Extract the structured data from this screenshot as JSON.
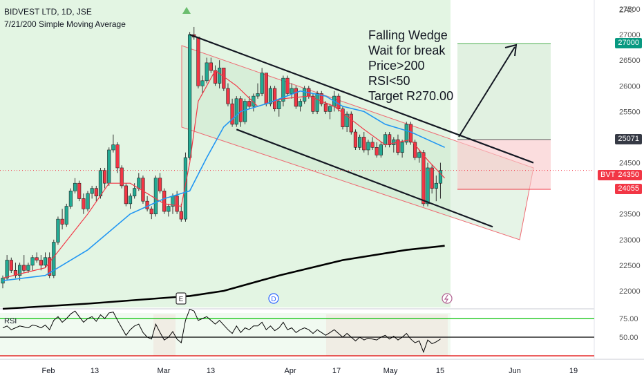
{
  "header": {
    "title": "BIDVEST LTD, 1D, JSE",
    "indicator": "7/21/200 Simple Moving Average"
  },
  "annotation": {
    "lines": [
      "Falling Wedge",
      "Wait for break",
      "Price>200",
      "RSI<50",
      "Target R270.00"
    ]
  },
  "price_tags": {
    "currency": "ZAC",
    "symbol": "BVT",
    "current": "24350",
    "target": "27000",
    "entry": "25071",
    "stop": "24055"
  },
  "markers": {
    "earnings": "E",
    "dividend": "D"
  },
  "rsi_label": "RSI",
  "colors": {
    "up": "#22ab94",
    "down": "#f23645",
    "ma_fast": "#f23645",
    "ma_mid": "#2196f3",
    "ma_slow": "#000000",
    "bg_bull": "#e3f5e3",
    "rsi_line": "#000000",
    "rsi_upper": "#00c000",
    "rsi_lower": "#e00000"
  },
  "chart_data": [
    {
      "type": "candlestick",
      "yaxis": {
        "ticks": [
          22000,
          22500,
          23000,
          23500,
          24000,
          24500,
          25000,
          25500,
          26000,
          26500,
          27000,
          27500
        ],
        "tick_labels": [
          "22000",
          "22500",
          "23000",
          "23500",
          "24000",
          "24500",
          "25000",
          "25500",
          "26000",
          "26500",
          "27000",
          "27500"
        ],
        "range": [
          21800,
          27900
        ]
      },
      "xaxis": {
        "tick_labels": [
          "Feb",
          "13",
          "Mar",
          "13",
          "Apr",
          "17",
          "May",
          "15",
          "Jun",
          "19"
        ]
      },
      "candles": [
        [
          22150,
          22300,
          22050,
          22250
        ],
        [
          22250,
          22700,
          22200,
          22600
        ],
        [
          22600,
          22650,
          22350,
          22400
        ],
        [
          22400,
          22550,
          22250,
          22300
        ],
        [
          22300,
          22550,
          22200,
          22500
        ],
        [
          22500,
          22700,
          22350,
          22400
        ],
        [
          22400,
          22550,
          22350,
          22500
        ],
        [
          22500,
          22700,
          22400,
          22650
        ],
        [
          22650,
          22750,
          22550,
          22600
        ],
        [
          22600,
          22700,
          22400,
          22500
        ],
        [
          22500,
          22750,
          22450,
          22650
        ],
        [
          22650,
          22750,
          22250,
          22300
        ],
        [
          22300,
          23000,
          22250,
          22950
        ],
        [
          22950,
          23450,
          22900,
          23400
        ],
        [
          23400,
          23600,
          23200,
          23300
        ],
        [
          23300,
          23700,
          23250,
          23650
        ],
        [
          23650,
          24000,
          23600,
          23950
        ],
        [
          23950,
          24200,
          23900,
          24100
        ],
        [
          24100,
          24150,
          23750,
          23800
        ],
        [
          23800,
          23900,
          23500,
          23600
        ],
        [
          23600,
          23950,
          23550,
          23900
        ],
        [
          23900,
          24050,
          23800,
          24000
        ],
        [
          24000,
          24050,
          23750,
          23850
        ],
        [
          23850,
          24400,
          23800,
          24350
        ],
        [
          24350,
          24400,
          24000,
          24100
        ],
        [
          24100,
          24800,
          24050,
          24750
        ],
        [
          24750,
          25050,
          24700,
          24850
        ],
        [
          24850,
          24900,
          24300,
          24400
        ],
        [
          24400,
          24450,
          24000,
          24050
        ],
        [
          24050,
          24100,
          23650,
          23700
        ],
        [
          23700,
          23900,
          23600,
          23850
        ],
        [
          23850,
          24100,
          23800,
          24000
        ],
        [
          24000,
          24300,
          23950,
          24200
        ],
        [
          24200,
          24250,
          23700,
          23750
        ],
        [
          23750,
          23850,
          23550,
          23600
        ],
        [
          23600,
          23650,
          23400,
          23500
        ],
        [
          23500,
          24250,
          23450,
          24200
        ],
        [
          24200,
          24300,
          23900,
          23950
        ],
        [
          23950,
          24000,
          23500,
          23550
        ],
        [
          23550,
          23700,
          23450,
          23650
        ],
        [
          23650,
          23900,
          23500,
          23850
        ],
        [
          23850,
          23950,
          23500,
          23550
        ],
        [
          23550,
          23700,
          23350,
          23400
        ],
        [
          23400,
          24700,
          23350,
          24600
        ],
        [
          24600,
          27050,
          24550,
          27000
        ],
        [
          27000,
          27150,
          26900,
          26950
        ],
        [
          26950,
          26900,
          25950,
          26000
        ],
        [
          26000,
          26200,
          25850,
          26100
        ],
        [
          26100,
          26550,
          26050,
          26450
        ],
        [
          26450,
          26550,
          26250,
          26300
        ],
        [
          26300,
          26400,
          26000,
          26050
        ],
        [
          26050,
          26500,
          25950,
          26350
        ],
        [
          26350,
          26350,
          25900,
          25950
        ],
        [
          25950,
          26050,
          25600,
          25650
        ],
        [
          25650,
          25750,
          25200,
          25250
        ],
        [
          25250,
          25800,
          25200,
          25750
        ],
        [
          25750,
          25800,
          25200,
          25300
        ],
        [
          25300,
          25750,
          25250,
          25700
        ],
        [
          25700,
          25800,
          25550,
          25600
        ],
        [
          25600,
          25850,
          25500,
          25800
        ],
        [
          25800,
          26050,
          25750,
          25850
        ],
        [
          25850,
          26350,
          25800,
          26250
        ],
        [
          26250,
          26250,
          25600,
          25650
        ],
        [
          25650,
          26000,
          25600,
          25950
        ],
        [
          25950,
          26000,
          25500,
          25550
        ],
        [
          25550,
          25750,
          25400,
          25700
        ],
        [
          25700,
          26200,
          25600,
          26150
        ],
        [
          26150,
          26200,
          25800,
          25850
        ],
        [
          25850,
          26050,
          25750,
          25950
        ],
        [
          25950,
          26000,
          25550,
          25600
        ],
        [
          25600,
          25750,
          25500,
          25700
        ],
        [
          25700,
          26000,
          25650,
          25950
        ],
        [
          25950,
          26000,
          25750,
          25800
        ],
        [
          25800,
          25850,
          25450,
          25500
        ],
        [
          25500,
          25900,
          25450,
          25850
        ],
        [
          25850,
          25900,
          25600,
          25650
        ],
        [
          25650,
          25700,
          25450,
          25500
        ],
        [
          25500,
          25650,
          25350,
          25600
        ],
        [
          25600,
          25900,
          25500,
          25800
        ],
        [
          25800,
          25850,
          25500,
          25550
        ],
        [
          25550,
          25600,
          25150,
          25200
        ],
        [
          25200,
          25500,
          25100,
          25450
        ],
        [
          25450,
          25500,
          25050,
          25100
        ],
        [
          25100,
          25150,
          24750,
          24800
        ],
        [
          24800,
          25050,
          24750,
          25000
        ],
        [
          25000,
          25100,
          24700,
          24750
        ],
        [
          24750,
          24950,
          24650,
          24900
        ],
        [
          24900,
          25000,
          24750,
          24800
        ],
        [
          24800,
          24900,
          24600,
          24650
        ],
        [
          24650,
          24900,
          24600,
          24850
        ],
        [
          24850,
          25100,
          24800,
          25050
        ],
        [
          25050,
          25100,
          24800,
          24850
        ],
        [
          24850,
          25000,
          24700,
          24950
        ],
        [
          24950,
          25050,
          24650,
          24700
        ],
        [
          24700,
          24950,
          24600,
          24900
        ],
        [
          24900,
          25300,
          24850,
          25250
        ],
        [
          25250,
          25300,
          24850,
          24900
        ],
        [
          24900,
          24950,
          24550,
          24600
        ],
        [
          24600,
          24750,
          24500,
          24700
        ],
        [
          24700,
          24750,
          23650,
          23700
        ],
        [
          23700,
          24500,
          23650,
          24400
        ],
        [
          24400,
          24450,
          23900,
          24000
        ],
        [
          24000,
          24250,
          23750,
          24100
        ],
        [
          24100,
          24500,
          23800,
          24350
        ]
      ],
      "series": [
        {
          "name": "7",
          "points": [
            [
              0,
              22250
            ],
            [
              10,
              22450
            ],
            [
              20,
              23500
            ],
            [
              25,
              24100
            ],
            [
              30,
              24100
            ],
            [
              38,
              23700
            ],
            [
              42,
              23650
            ],
            [
              44,
              24500
            ],
            [
              46,
              25700
            ],
            [
              50,
              26300
            ],
            [
              55,
              26000
            ],
            [
              60,
              25600
            ],
            [
              66,
              25750
            ],
            [
              72,
              25800
            ],
            [
              78,
              25600
            ],
            [
              85,
              25150
            ],
            [
              90,
              24850
            ],
            [
              96,
              24950
            ],
            [
              100,
              24550
            ],
            [
              104,
              24200
            ]
          ]
        },
        {
          "name": "21",
          "points": [
            [
              0,
              22200
            ],
            [
              10,
              22300
            ],
            [
              20,
              22800
            ],
            [
              30,
              23500
            ],
            [
              38,
              23800
            ],
            [
              44,
              23950
            ],
            [
              48,
              24600
            ],
            [
              52,
              25200
            ],
            [
              56,
              25500
            ],
            [
              62,
              25650
            ],
            [
              70,
              25900
            ],
            [
              76,
              25800
            ],
            [
              80,
              25600
            ],
            [
              85,
              25500
            ],
            [
              90,
              25250
            ],
            [
              96,
              25100
            ],
            [
              100,
              24950
            ],
            [
              104,
              24800
            ]
          ]
        },
        {
          "name": "200",
          "points": [
            [
              0,
              21650
            ],
            [
              20,
              21750
            ],
            [
              44,
              21900
            ],
            [
              52,
              22000
            ],
            [
              65,
              22300
            ],
            [
              80,
              22600
            ],
            [
              95,
              22800
            ],
            [
              104,
              22880
            ]
          ]
        }
      ],
      "wedge": {
        "upper": [
          [
            44,
            27000
          ],
          [
            118,
            24500
          ]
        ],
        "lower": [
          [
            55,
            25150
          ],
          [
            108,
            23250
          ]
        ]
      }
    },
    {
      "type": "line",
      "name": "RSI",
      "yaxis": {
        "tick_labels": [
          "75.00",
          "50.00"
        ],
        "range": [
          25,
          85
        ]
      },
      "levels": [
        70,
        50,
        30
      ],
      "values": [
        60,
        62,
        58,
        60,
        62,
        61,
        60,
        63,
        62,
        60,
        63,
        58,
        68,
        72,
        66,
        70,
        75,
        78,
        72,
        66,
        70,
        72,
        67,
        74,
        70,
        76,
        77,
        68,
        60,
        52,
        58,
        62,
        64,
        55,
        50,
        48,
        64,
        55,
        47,
        50,
        56,
        48,
        44,
        68,
        80,
        78,
        68,
        70,
        72,
        68,
        64,
        68,
        63,
        58,
        54,
        62,
        55,
        60,
        58,
        62,
        62,
        66,
        58,
        62,
        57,
        60,
        66,
        58,
        60,
        55,
        58,
        60,
        58,
        54,
        58,
        55,
        52,
        55,
        58,
        54,
        50,
        54,
        50,
        46,
        50,
        47,
        49,
        48,
        47,
        50,
        52,
        48,
        51,
        47,
        50,
        54,
        48,
        44,
        46,
        34,
        47,
        43,
        45,
        48
      ]
    }
  ]
}
